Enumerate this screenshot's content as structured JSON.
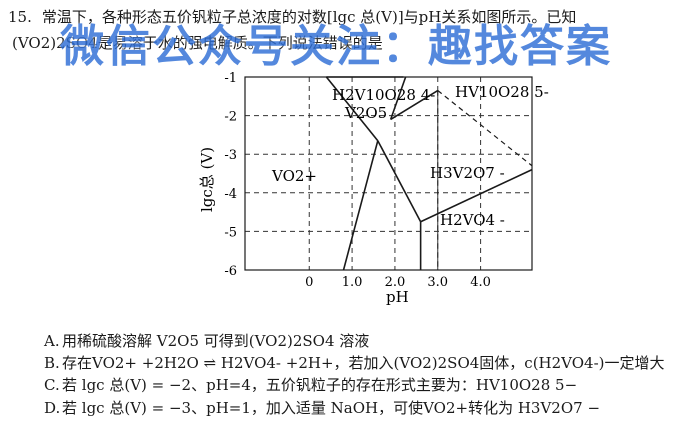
{
  "question": {
    "number": "15.",
    "line1": "常温下，各种形态五价钒粒子总浓度的对数[lgc 总(V)]与pH关系如图所示。已知",
    "line2": "(VO2)2SO4是易溶于水的强电解质。下列说法错误的是"
  },
  "watermark": "微信公众号关注：趣找答案",
  "chart_data": {
    "type": "phase-diagram",
    "title": "",
    "xlabel": "pH",
    "ylabel": "lgc总 (V)",
    "xlim": [
      -1.5,
      5.2
    ],
    "ylim": [
      -6,
      -1
    ],
    "xticks": [
      "0",
      "1.0",
      "2.0",
      "3.0",
      "4.0"
    ],
    "xtick_values": [
      0,
      1,
      2,
      3,
      4
    ],
    "yticks": [
      "-1",
      "-2",
      "-3",
      "-4",
      "-5",
      "-6"
    ],
    "ytick_values": [
      -1,
      -2,
      -3,
      -4,
      -5,
      -6
    ],
    "gridlines": "dashed",
    "boundaries": {
      "solid": [
        [
          [
            0.4,
            -1
          ],
          [
            2.2,
            -1.0
          ]
        ],
        [
          [
            0.4,
            -1
          ],
          [
            1.6,
            -2.65
          ]
        ],
        [
          [
            1.6,
            -2.65
          ],
          [
            0.8,
            -6
          ]
        ],
        [
          [
            1.6,
            -2.65
          ],
          [
            2.6,
            -4.75
          ]
        ],
        [
          [
            2.6,
            -4.75
          ],
          [
            2.6,
            -6
          ]
        ],
        [
          [
            2.6,
            -4.75
          ],
          [
            5.2,
            -3.4
          ]
        ],
        [
          [
            2.25,
            -1.0
          ],
          [
            1.9,
            -2.1
          ]
        ],
        [
          [
            1.9,
            -2.1
          ],
          [
            3.0,
            -1.35
          ]
        ]
      ],
      "dashed": [
        [
          [
            3.0,
            -1.35
          ],
          [
            3.0,
            -6
          ]
        ],
        [
          [
            3.0,
            -1.35
          ],
          [
            5.2,
            -3.3
          ]
        ]
      ]
    },
    "regions": [
      {
        "label": "VO2+",
        "x": 0.3,
        "y": -3.5
      },
      {
        "label": "H2V10O28 4-",
        "x": 1.2,
        "y": -1.4
      },
      {
        "label": "V2O5",
        "x": 1.05,
        "y": -2.0
      },
      {
        "label": "HV10O28 5-",
        "x": 3.8,
        "y": -1.45
      },
      {
        "label": "H3V2O7 -",
        "x": 3.45,
        "y": -3.45
      },
      {
        "label": "H2VO4 -",
        "x": 3.6,
        "y": -4.7
      }
    ]
  },
  "options": [
    {
      "letter": "A.",
      "text": "用稀硫酸溶解 V2O5 可得到(VO2)2SO4 溶液"
    },
    {
      "letter": "B.",
      "text": "存在VO2+ +2H2O ⇌ H2VO4- +2H+，若加入(VO2)2SO4固体，c(H2VO4-)一定增大"
    },
    {
      "letter": "C.",
      "text": "若 lgc 总(V) = −2、pH=4，五价钒粒子的存在形式主要为：HV10O28 5−"
    },
    {
      "letter": "D.",
      "text": "若 lgc 总(V) = −3、pH=1，加入适量 NaOH，可使VO2+转化为 H3V2O7 −"
    }
  ]
}
